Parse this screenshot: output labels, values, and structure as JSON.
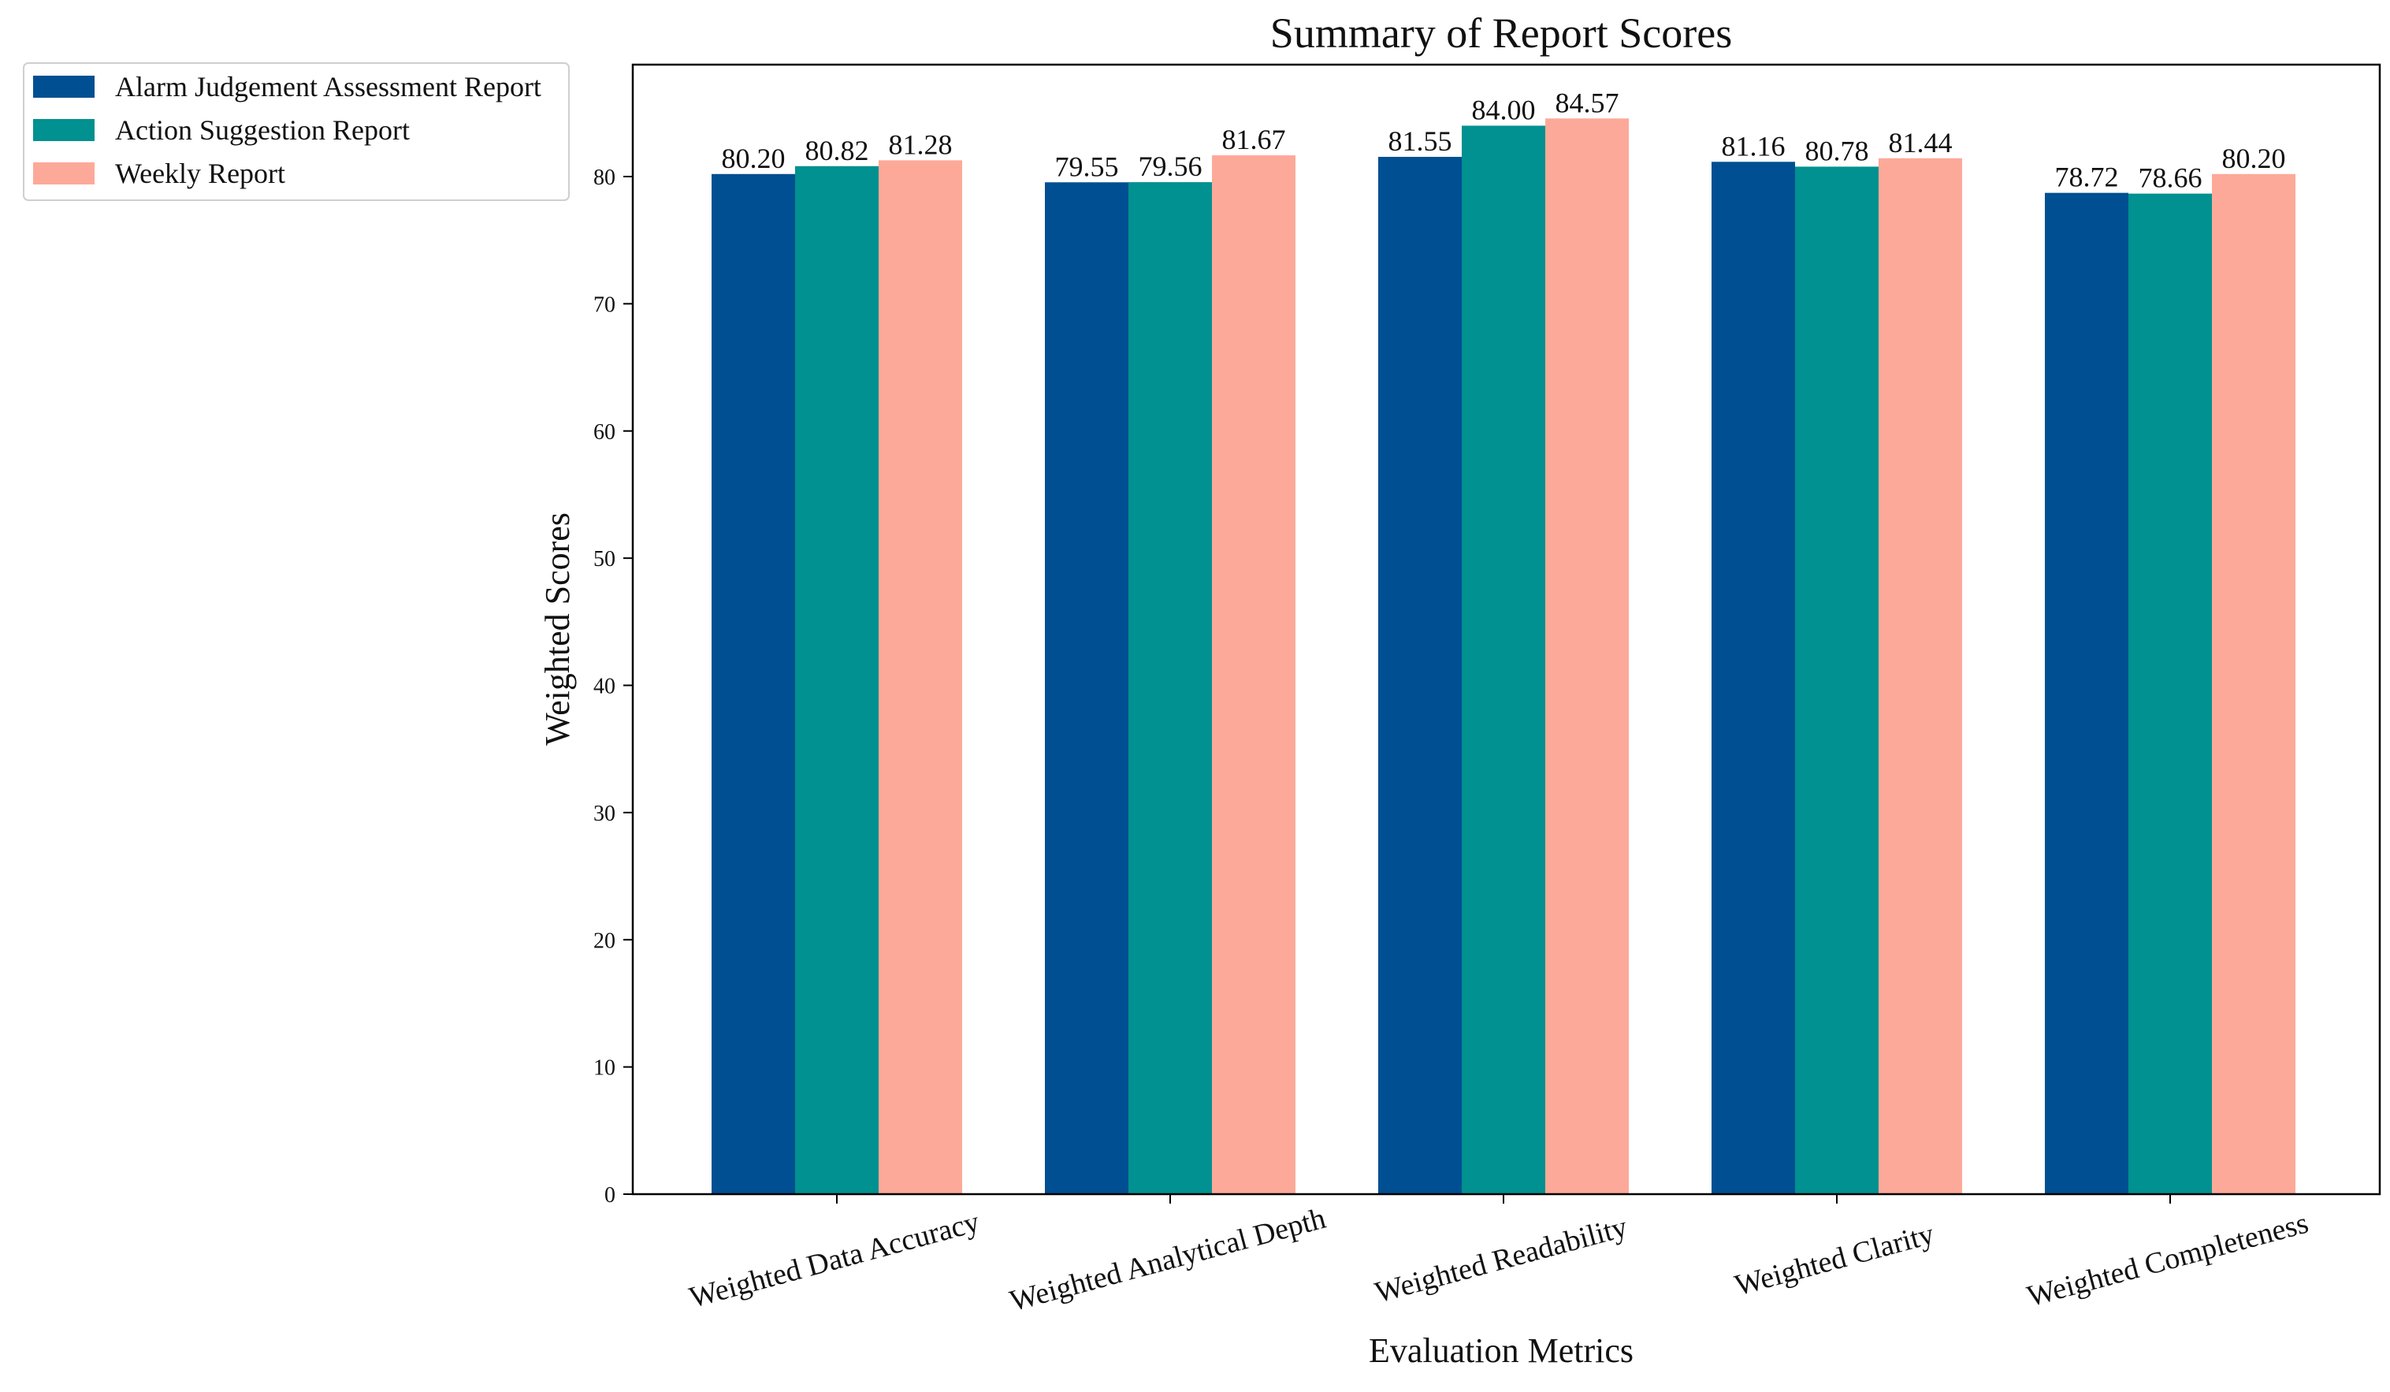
{
  "chart_data": {
    "type": "bar",
    "title": "Summary of Report Scores",
    "xlabel": "Evaluation Metrics",
    "ylabel": "Weighted Scores",
    "ylim": [
      0,
      88.8
    ],
    "yticks": [
      0,
      10,
      20,
      30,
      40,
      50,
      60,
      70,
      80
    ],
    "categories": [
      "Weighted Data Accuracy",
      "Weighted Analytical Depth",
      "Weighted Readability",
      "Weighted Clarity",
      "Weighted Completeness"
    ],
    "series": [
      {
        "name": "Alarm Judgement Assessment Report",
        "color": "#004f92",
        "values": [
          80.2,
          79.55,
          81.55,
          81.16,
          78.72
        ],
        "labels": [
          "80.20",
          "79.55",
          "81.55",
          "81.16",
          "78.72"
        ]
      },
      {
        "name": "Action Suggestion Report",
        "color": "#009190",
        "values": [
          80.82,
          79.56,
          84.0,
          80.78,
          78.66
        ],
        "labels": [
          "80.82",
          "79.56",
          "84.00",
          "80.78",
          "78.66"
        ]
      },
      {
        "name": "Weekly Report",
        "color": "#fda999",
        "values": [
          81.28,
          81.67,
          84.57,
          81.44,
          80.2
        ],
        "labels": [
          "81.28",
          "81.67",
          "84.57",
          "81.44",
          "80.20"
        ]
      }
    ],
    "legend_position": "outside-top-left",
    "grid": false
  }
}
